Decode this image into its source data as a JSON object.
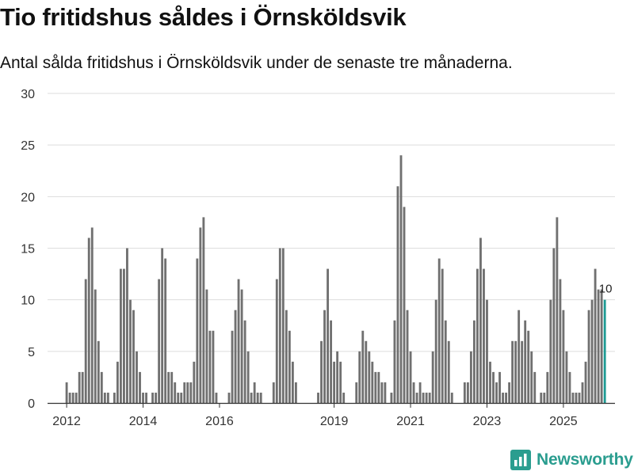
{
  "title": "Tio fritidshus såldes i Örnsköldsvik",
  "subtitle": "Antal sålda fritidshus i Örnsköldsvik under de senaste tre månaderna.",
  "brand": {
    "name": "Newsworthy",
    "color": "#2a9d8f"
  },
  "colors": {
    "bar": "#707070",
    "highlight": "#1d9a93",
    "grid": "#dddddd",
    "axis": "#333333"
  },
  "chart_data": {
    "type": "bar",
    "title": "Tio fritidshus såldes i Örnsköldsvik",
    "xlabel": "",
    "ylabel": "",
    "ylim": [
      0,
      30
    ],
    "yticks": [
      0,
      5,
      10,
      15,
      20,
      25,
      30
    ],
    "x_range": [
      2011.5,
      2026.35
    ],
    "xticks": [
      {
        "label": "2012",
        "year": 2012
      },
      {
        "label": "2014",
        "year": 2014
      },
      {
        "label": "2016",
        "year": 2016
      },
      {
        "label": "2019",
        "year": 2019
      },
      {
        "label": "2021",
        "year": 2021
      },
      {
        "label": "2023",
        "year": 2023
      },
      {
        "label": "2025",
        "year": 2025
      }
    ],
    "series_start": {
      "year": 2012,
      "month": 1
    },
    "values": [
      2,
      1,
      1,
      1,
      3,
      3,
      12,
      16,
      17,
      11,
      6,
      3,
      1,
      1,
      0,
      1,
      4,
      13,
      13,
      15,
      10,
      9,
      5,
      3,
      1,
      1,
      0,
      1,
      1,
      12,
      15,
      14,
      3,
      3,
      2,
      1,
      1,
      2,
      2,
      2,
      4,
      14,
      17,
      18,
      11,
      7,
      7,
      1,
      0,
      0,
      0,
      1,
      7,
      9,
      12,
      11,
      8,
      5,
      1,
      2,
      1,
      1,
      0,
      0,
      0,
      2,
      12,
      15,
      15,
      9,
      7,
      4,
      2,
      0,
      0,
      0,
      0,
      0,
      0,
      1,
      6,
      9,
      13,
      8,
      4,
      5,
      4,
      1,
      0,
      0,
      0,
      2,
      5,
      7,
      6,
      5,
      4,
      3,
      3,
      2,
      2,
      0,
      1,
      8,
      21,
      24,
      19,
      9,
      5,
      2,
      1,
      2,
      1,
      1,
      1,
      5,
      10,
      14,
      13,
      8,
      6,
      1,
      0,
      0,
      0,
      2,
      2,
      5,
      8,
      13,
      16,
      13,
      10,
      4,
      3,
      2,
      3,
      1,
      1,
      2,
      6,
      6,
      9,
      6,
      8,
      7,
      5,
      3,
      0,
      1,
      1,
      3,
      10,
      15,
      18,
      12,
      9,
      5,
      3,
      1,
      1,
      1,
      2,
      4,
      9,
      10,
      13,
      11,
      11,
      10
    ],
    "highlight": {
      "index": 169,
      "value": 10,
      "label": "10"
    }
  }
}
